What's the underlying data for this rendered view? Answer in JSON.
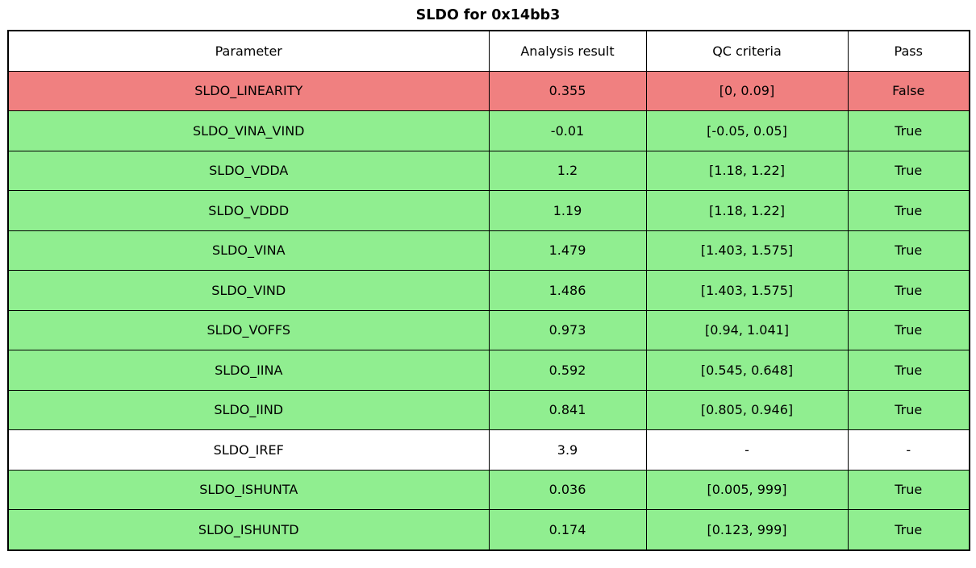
{
  "title": "SLDO for 0x14bb3",
  "colors": {
    "pass": "#90ee90",
    "fail": "#f08080",
    "none": "#ffffff",
    "border": "#000000"
  },
  "chart_data": {
    "type": "table",
    "title": "SLDO for 0x14bb3",
    "columns": [
      "Parameter",
      "Analysis result",
      "QC criteria",
      "Pass"
    ],
    "rows": [
      {
        "parameter": "SLDO_LINEARITY",
        "result": "0.355",
        "criteria": "[0, 0.09]",
        "pass": "False",
        "status": "fail"
      },
      {
        "parameter": "SLDO_VINA_VIND",
        "result": "-0.01",
        "criteria": "[-0.05, 0.05]",
        "pass": "True",
        "status": "pass"
      },
      {
        "parameter": "SLDO_VDDA",
        "result": "1.2",
        "criteria": "[1.18, 1.22]",
        "pass": "True",
        "status": "pass"
      },
      {
        "parameter": "SLDO_VDDD",
        "result": "1.19",
        "criteria": "[1.18, 1.22]",
        "pass": "True",
        "status": "pass"
      },
      {
        "parameter": "SLDO_VINA",
        "result": "1.479",
        "criteria": "[1.403, 1.575]",
        "pass": "True",
        "status": "pass"
      },
      {
        "parameter": "SLDO_VIND",
        "result": "1.486",
        "criteria": "[1.403, 1.575]",
        "pass": "True",
        "status": "pass"
      },
      {
        "parameter": "SLDO_VOFFS",
        "result": "0.973",
        "criteria": "[0.94, 1.041]",
        "pass": "True",
        "status": "pass"
      },
      {
        "parameter": "SLDO_IINA",
        "result": "0.592",
        "criteria": "[0.545, 0.648]",
        "pass": "True",
        "status": "pass"
      },
      {
        "parameter": "SLDO_IIND",
        "result": "0.841",
        "criteria": "[0.805, 0.946]",
        "pass": "True",
        "status": "pass"
      },
      {
        "parameter": "SLDO_IREF",
        "result": "3.9",
        "criteria": "-",
        "pass": "-",
        "status": "none"
      },
      {
        "parameter": "SLDO_ISHUNTA",
        "result": "0.036",
        "criteria": "[0.005, 999]",
        "pass": "True",
        "status": "pass"
      },
      {
        "parameter": "SLDO_ISHUNTD",
        "result": "0.174",
        "criteria": "[0.123, 999]",
        "pass": "True",
        "status": "pass"
      }
    ]
  }
}
